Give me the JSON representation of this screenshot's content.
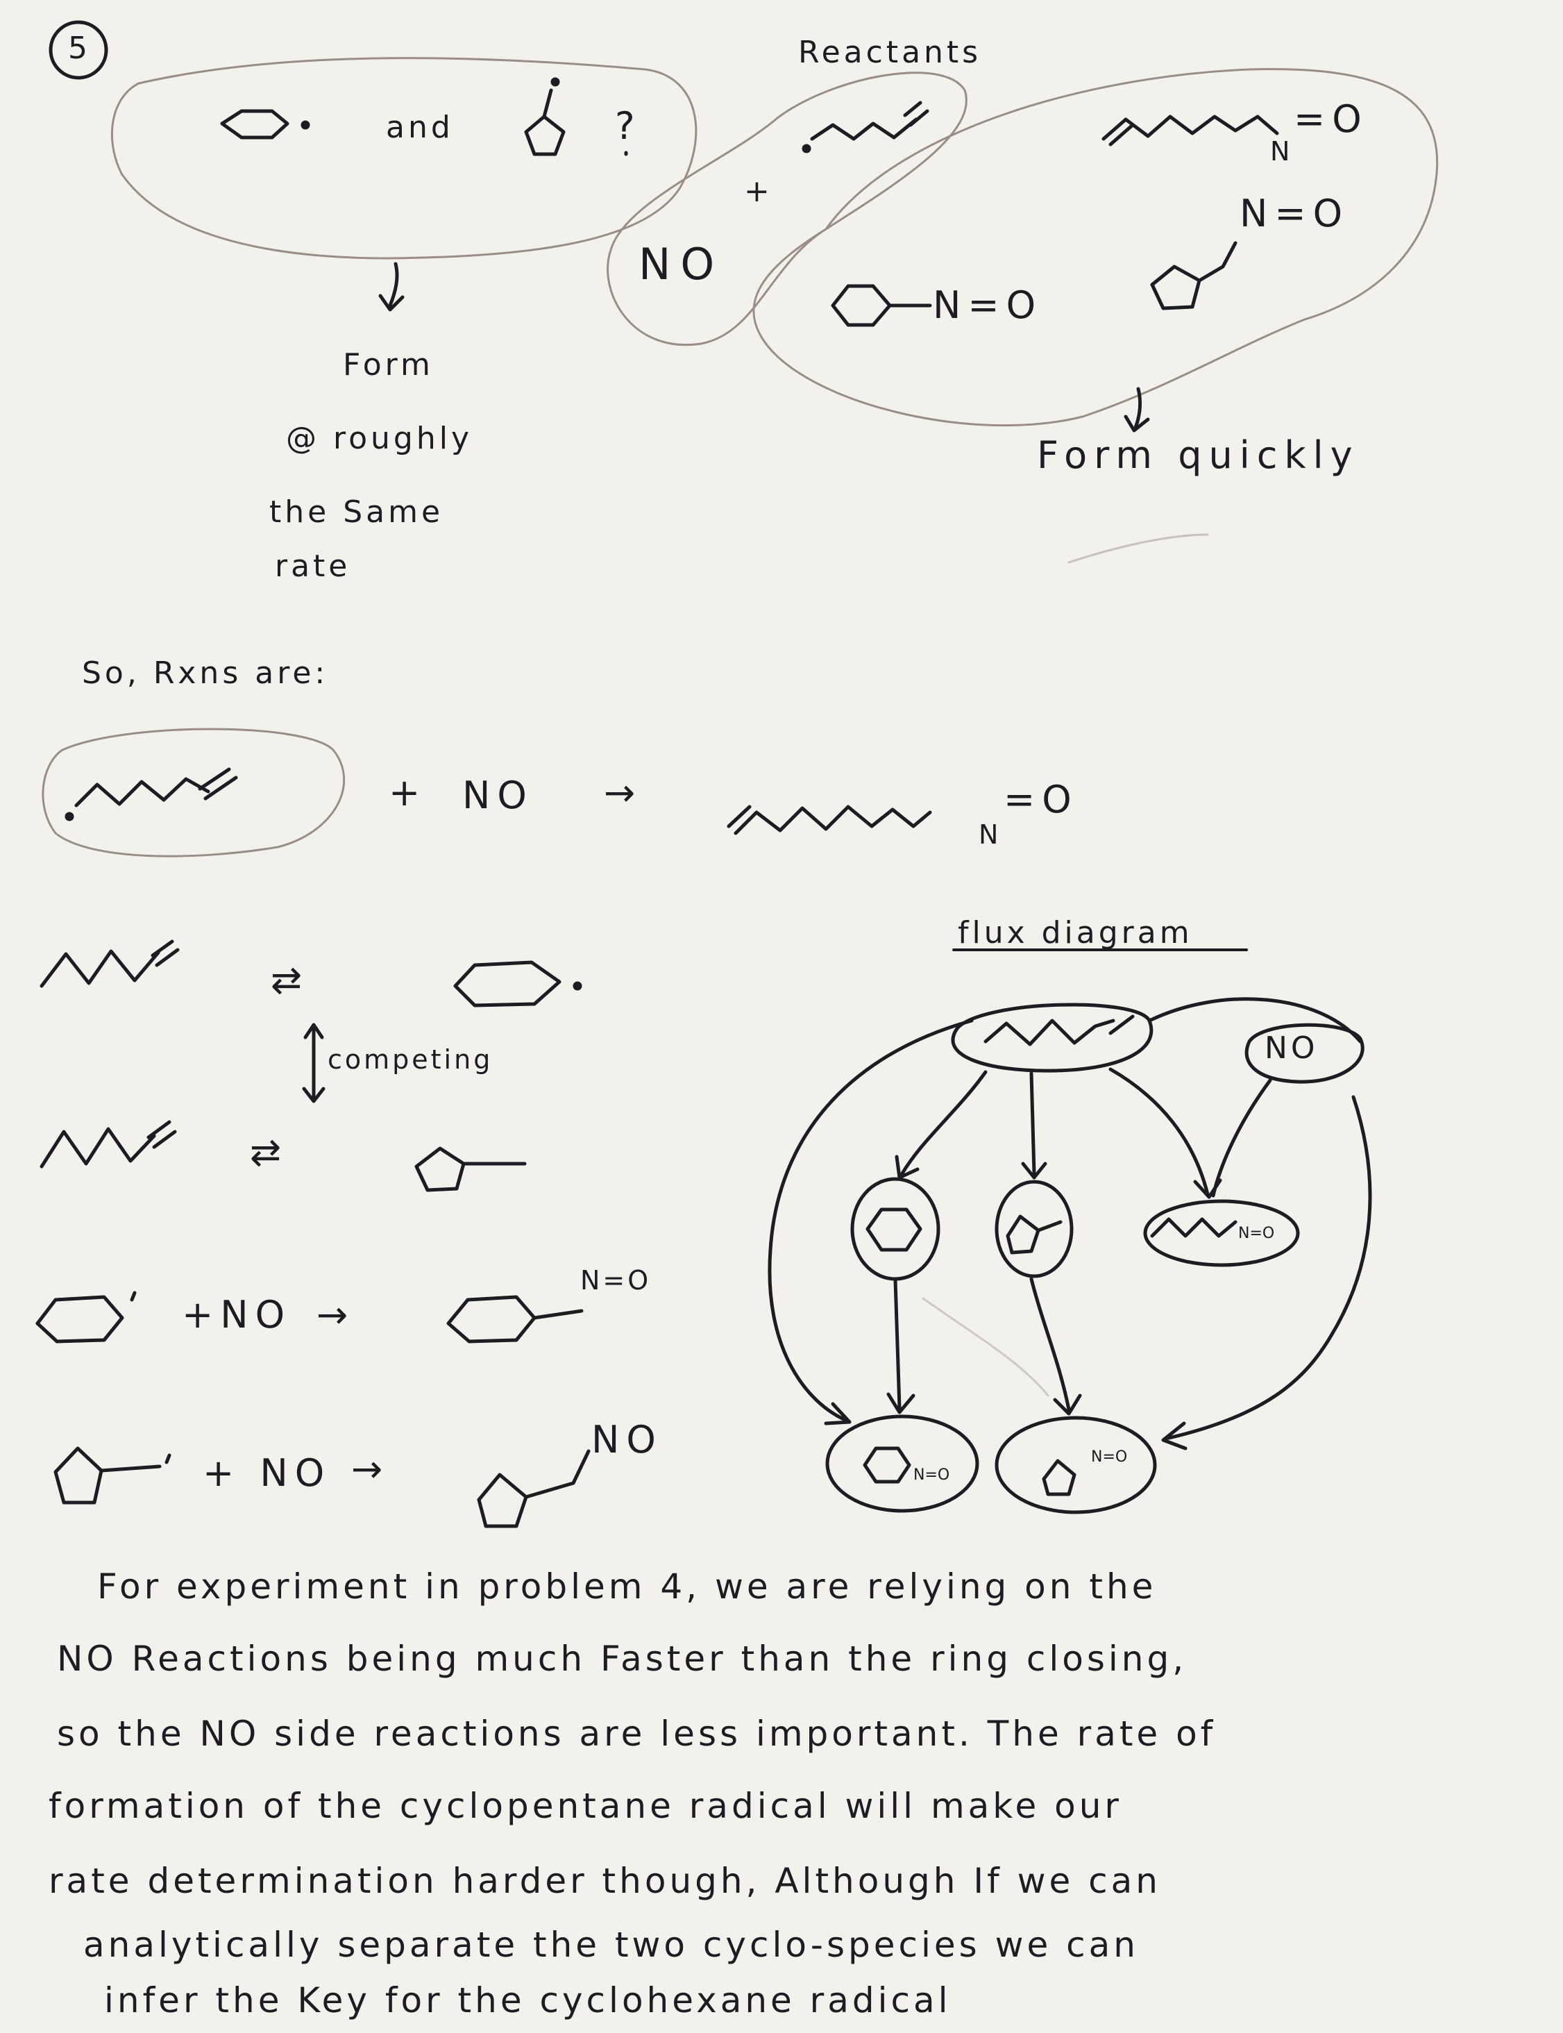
{
  "page": {
    "problem_number": "5",
    "top_left": {
      "and": "and",
      "question": "?"
    },
    "reactants_label": "Reactants",
    "no_label": "NO",
    "plus_small": "+",
    "products": {
      "n1": "N",
      "eq1": "=O",
      "n2": "N=O",
      "n3": "N=O"
    },
    "form_same_rate": [
      "Form",
      "@ roughly",
      "the Same",
      "rate"
    ],
    "form_quickly": "Form quickly",
    "so_rxns": "So, Rxns are:",
    "rxn1": {
      "plus": "+",
      "no": "NO",
      "arrow": "→",
      "n": "N",
      "eqo": "=O"
    },
    "equilibrium_arrow": "⇄",
    "competing": "competing",
    "rxn4": {
      "plus_no": "+NO",
      "arrow": "→",
      "n_eq_o": "N=O"
    },
    "rxn5": {
      "plus_no": "+ NO",
      "arrow": "→",
      "no2": "NO"
    },
    "flux": {
      "title": "flux diagram",
      "no_node": "NO",
      "chain_no": "N=O",
      "prod1": "N=O",
      "prod2": "N=O"
    },
    "paragraph": [
      "For experiment in problem 4, we are relying on the",
      "NO Reactions being much Faster than the ring closing,",
      "so the NO side reactions are less important. The rate of",
      "formation of the cyclopentane radical will make our",
      "rate determination harder though, Although If we can",
      "analytically separate the two cyclo-species we can",
      "infer the Key for the cyclohexane radical"
    ]
  }
}
